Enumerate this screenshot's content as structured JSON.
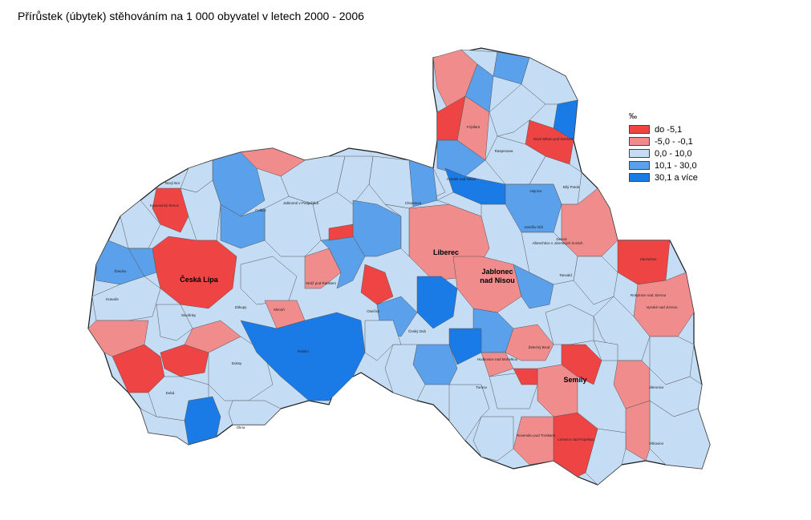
{
  "title": "Přírůstek (úbytek) stěhováním na 1 000 obyvatel v letech 2000 - 2006",
  "legend": {
    "unit": "‰",
    "items": [
      {
        "label": "do -5,1",
        "color": "#ee4444"
      },
      {
        "label": "-5,0 - -0,1",
        "color": "#f08c8c"
      },
      {
        "label": "0,0 - 10,0",
        "color": "#c4dcf4"
      },
      {
        "label": "10,1 - 30,0",
        "color": "#5aa0ea"
      },
      {
        "label": "30,1 a více",
        "color": "#1a7ae6"
      }
    ]
  },
  "colors": {
    "low": "#ee4444",
    "midlow": "#f08c8c",
    "mid": "#c4dcf4",
    "midhigh": "#5aa0ea",
    "high": "#1a7ae6",
    "border": "#1a1a1a"
  },
  "cities": {
    "liberec": "Liberec",
    "ceska_lipa": "Česká Lípa",
    "jablonec_1": "Jablonec",
    "jablonec_2": "nad Nisou",
    "semily": "Semily"
  },
  "municipalities": {
    "ralsko": "Ralsko",
    "cvikov": "Cvikov",
    "mimon": "Mimoň",
    "doksy": "Doksy",
    "chrastava": "Chrastava",
    "frydlant": "Frýdlant",
    "hejnice": "Hejnice",
    "raspenava": "Raspenava",
    "tanvald": "Tanvald",
    "turnov": "Turnov",
    "lomnice": "Lomnice nad Popelkou",
    "jilemnice": "Jilemnice",
    "harrachov": "Harrachov",
    "rokytnice": "Rokytnice nad Jizerou",
    "vysoke": "Vysoké nad Jizerou",
    "novy_bor": "Nový Bor",
    "kamenicky": "Kamenický Šenov",
    "zandov": "Žandov",
    "dubá": "Dubá",
    "hodkovice": "Hodkovice nad Mohelkou",
    "osecna": "Osečná",
    "cesky_dub": "Český Dub",
    "rovensko": "Rovensko pod Troskami",
    "vitkovice": "Vítkovice",
    "desna": "Desná",
    "zelezny_brod": "Železný Brod",
    "josefuv_dul": "Josefův Důl",
    "albrechtice": "Albrechtice v Jizerských horách",
    "bily_potok": "Bílý Potok",
    "nove_mesto": "Nové Město pod Smrkem",
    "hradek": "Hrádek nad Nisou",
    "jablonne": "Jablonné v Podještědí",
    "straz": "Stráž pod Ralskem",
    "zakupy": "Zákupy",
    "kravare": "Kravaře",
    "stvolinky": "Stvolínky",
    "okna": "Okna"
  }
}
